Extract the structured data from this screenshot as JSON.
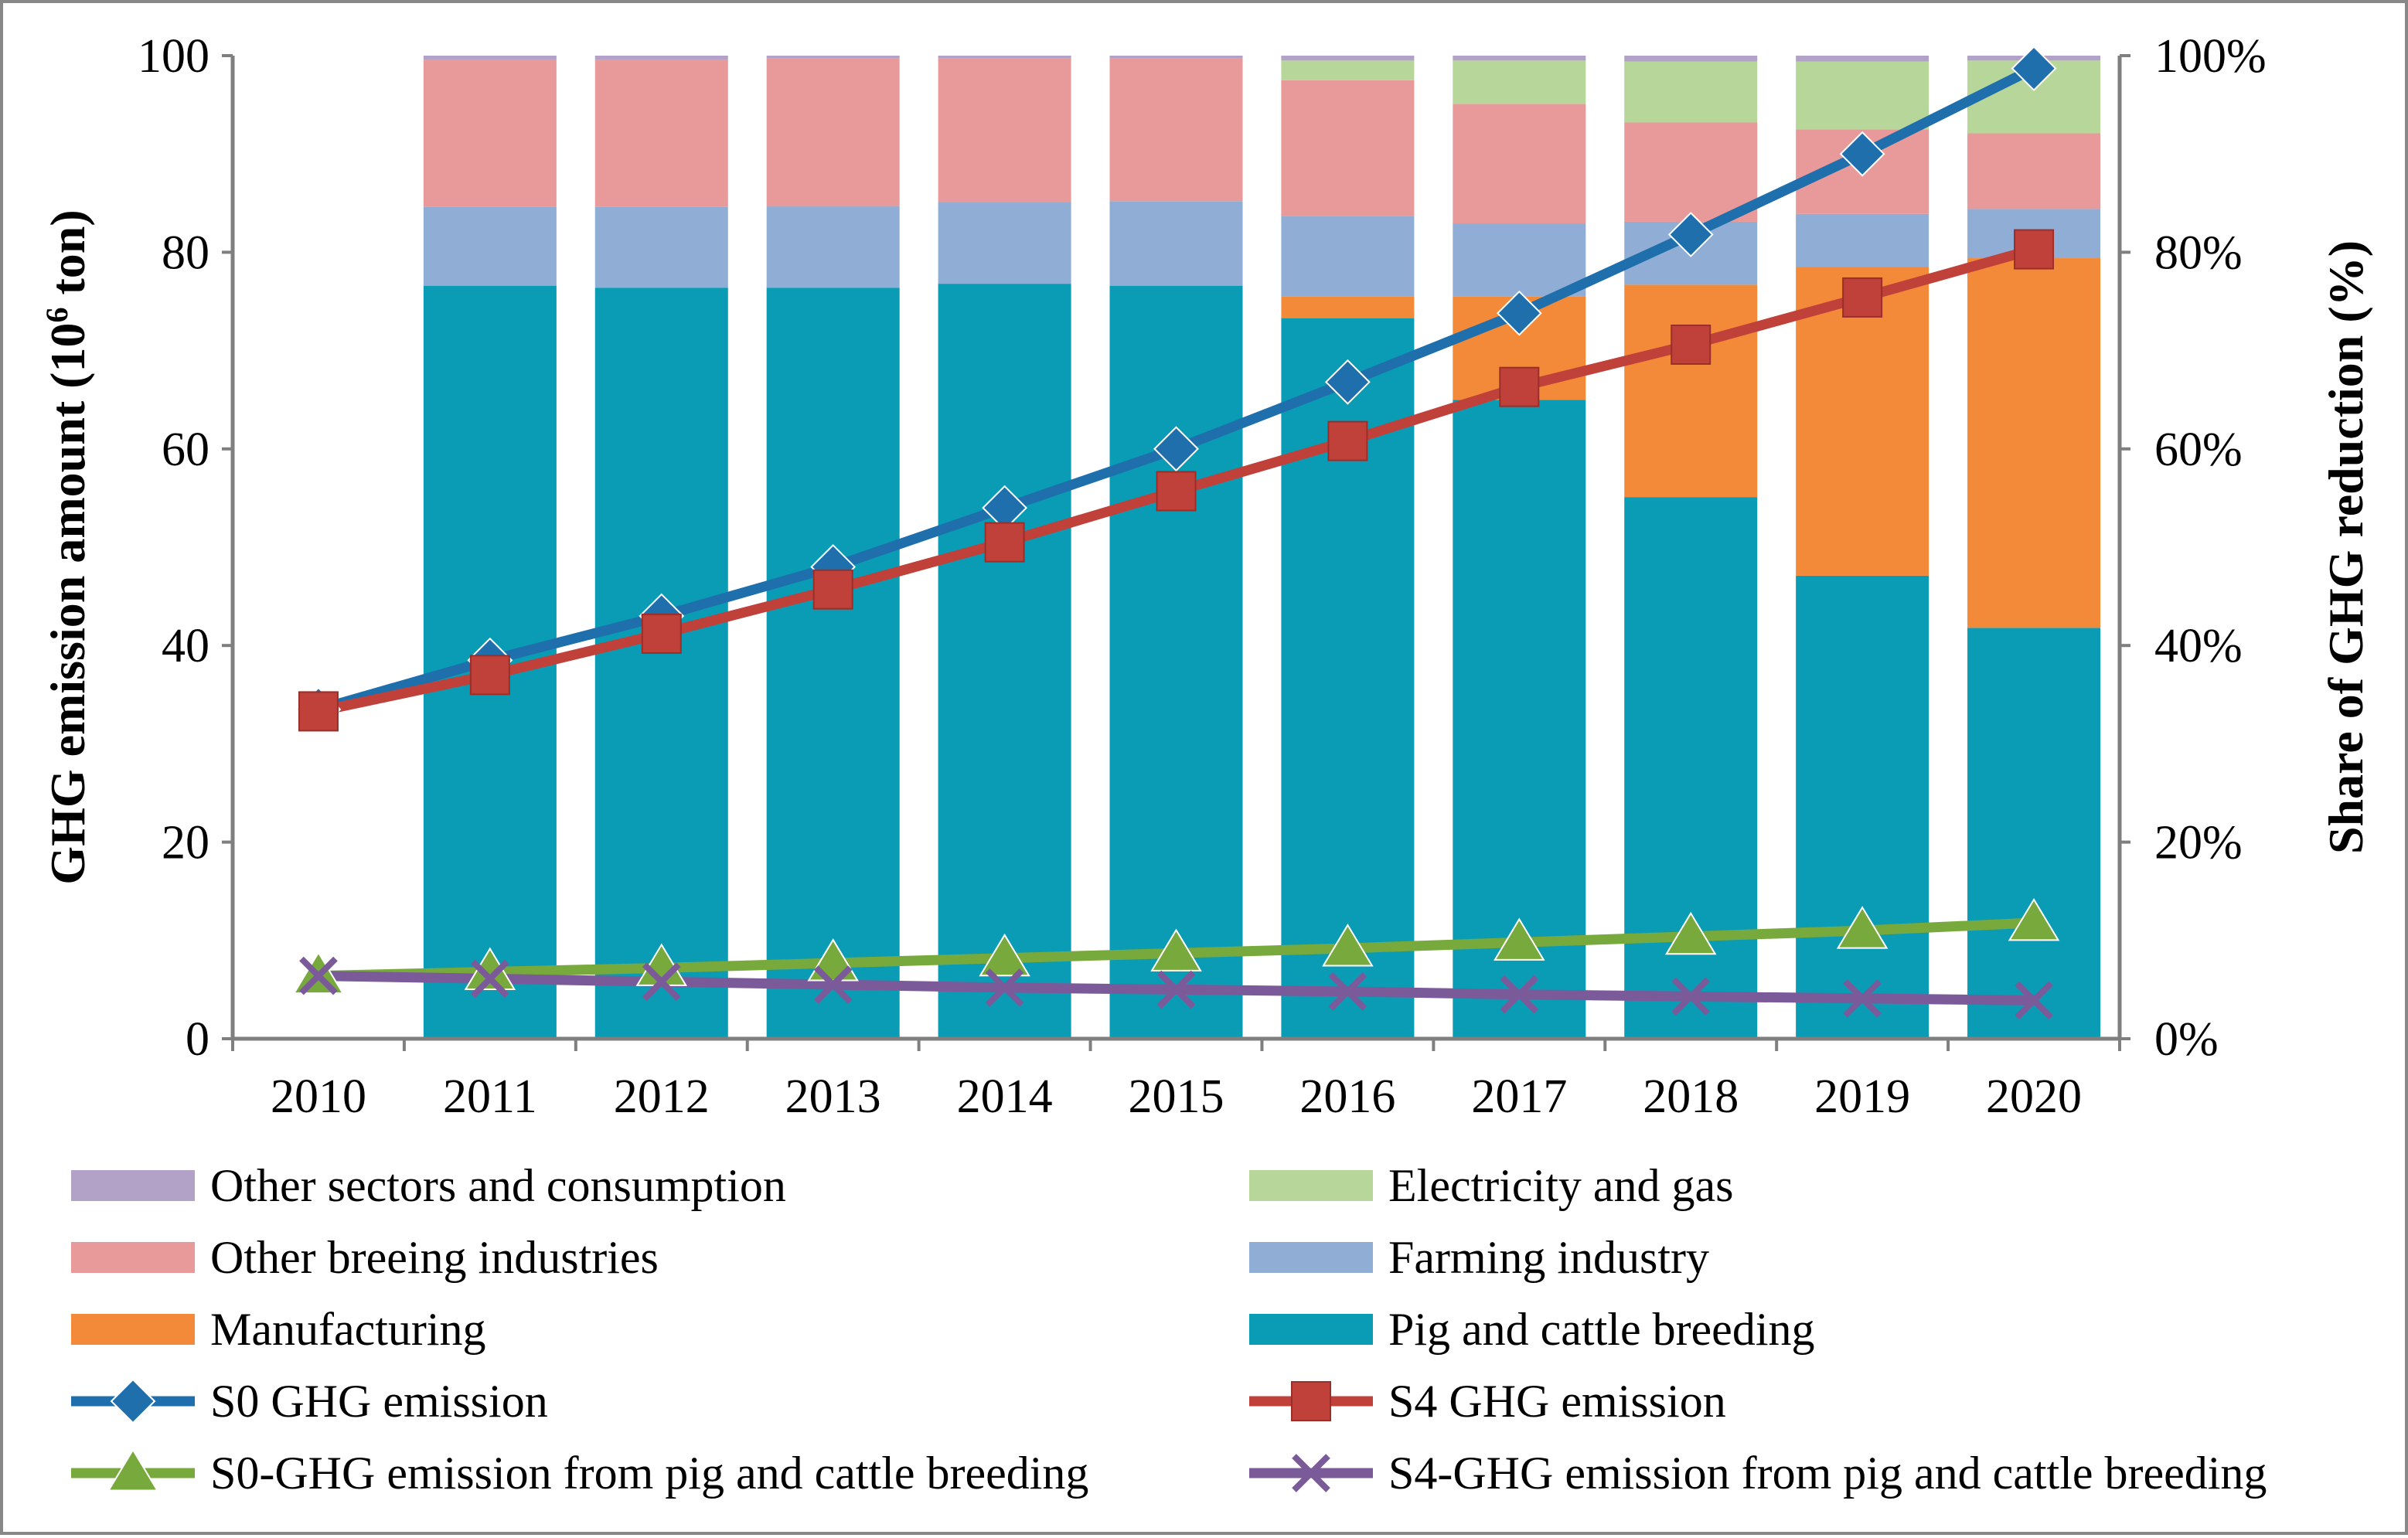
{
  "chart_data": {
    "type": "bar",
    "subtype": "stacked-bar-with-lines",
    "title": "",
    "categories": [
      "2010",
      "2011",
      "2012",
      "2013",
      "2014",
      "2015",
      "2016",
      "2017",
      "2018",
      "2019",
      "2020"
    ],
    "ylabel_left": {
      "pre": "GHG emission amount (10",
      "sup": "6",
      "post": " ton)"
    },
    "ylabel_right": "Share of GHG reduction (%)",
    "ylim_left": [
      0,
      100
    ],
    "ylim_right": [
      0,
      100
    ],
    "yticks_left": [
      "0",
      "20",
      "40",
      "60",
      "80",
      "100"
    ],
    "yticks_right": [
      "0%",
      "20%",
      "40%",
      "60%",
      "80%",
      "100%"
    ],
    "grid": false,
    "legend_position": "bottom",
    "stacked_series": [
      {
        "name": "Pig and cattle breeding",
        "color": "#0a9cb5",
        "values": [
          0,
          76.6,
          76.4,
          76.4,
          76.8,
          76.6,
          73.3,
          65.0,
          55.1,
          47.1,
          41.8
        ]
      },
      {
        "name": "Manufacturing",
        "color": "#f38a39",
        "values": [
          0,
          0,
          0,
          0,
          0,
          0,
          2.2,
          10.5,
          21.6,
          31.4,
          37.6
        ]
      },
      {
        "name": "Farming industry",
        "color": "#8fadd5",
        "values": [
          0,
          8.0,
          8.2,
          8.3,
          8.3,
          8.6,
          8.2,
          7.4,
          6.4,
          5.4,
          5.0
        ]
      },
      {
        "name": "Other breeing industries",
        "color": "#e89a9a",
        "values": [
          0,
          15.0,
          15.0,
          15.0,
          14.6,
          14.5,
          13.8,
          12.2,
          10.1,
          8.6,
          7.7
        ]
      },
      {
        "name": "Electricity and gas",
        "color": "#b7d69a",
        "values": [
          0,
          0,
          0,
          0,
          0,
          0,
          2.0,
          4.4,
          6.2,
          6.9,
          7.4
        ]
      },
      {
        "name": "Other sectors and consumption",
        "color": "#b3a2c7",
        "values": [
          0,
          0.4,
          0.4,
          0.3,
          0.3,
          0.3,
          0.5,
          0.5,
          0.6,
          0.6,
          0.5
        ]
      }
    ],
    "line_series": [
      {
        "name": "S0 GHG emission",
        "color": "#1f6fad",
        "marker": "diamond",
        "values": [
          33.5,
          38.5,
          43.0,
          48.0,
          54.0,
          60.0,
          66.8,
          73.8,
          81.8,
          90.0,
          98.7
        ]
      },
      {
        "name": "S4 GHG emission",
        "color": "#c0403a",
        "marker": "square",
        "values": [
          33.3,
          37.0,
          41.2,
          45.7,
          50.5,
          55.7,
          60.8,
          66.3,
          70.6,
          75.4,
          80.3
        ]
      },
      {
        "name": "S0-GHG emission from pig and cattle breeding",
        "color": "#78a93c",
        "marker": "triangle",
        "values": [
          6.4,
          6.8,
          7.2,
          7.7,
          8.2,
          8.7,
          9.2,
          9.8,
          10.4,
          11.0,
          11.8
        ]
      },
      {
        "name": "S4-GHG emission from pig and cattle breeding",
        "color": "#7b5a9a",
        "marker": "x",
        "values": [
          6.4,
          6.1,
          5.8,
          5.5,
          5.2,
          5.0,
          4.8,
          4.5,
          4.3,
          4.1,
          3.9
        ]
      }
    ],
    "legend_order": [
      "Other sectors and consumption",
      "Electricity and gas",
      "Other breeing industries",
      "Farming industry",
      "Manufacturing",
      "Pig and cattle breeding",
      "S0 GHG emission",
      "S4 GHG emission",
      "S0-GHG emission from pig and cattle breeding",
      "S4-GHG emission from pig and cattle breeding"
    ]
  }
}
